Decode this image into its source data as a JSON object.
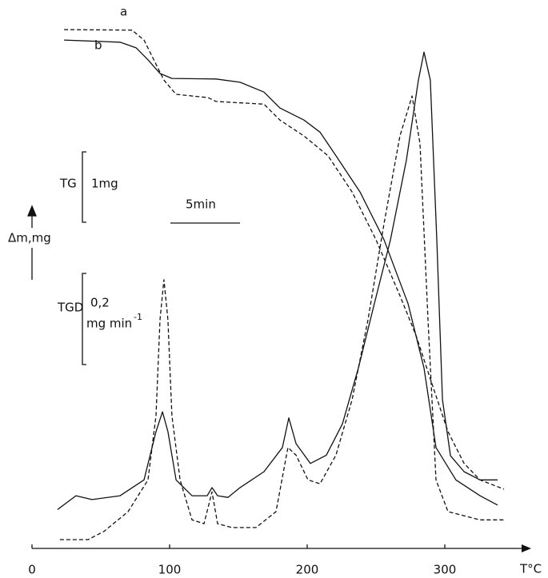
{
  "chart_data": {
    "type": "line",
    "x_label": "T°C",
    "y_label": "Δm,mg",
    "xlim": [
      0,
      360
    ],
    "xticks": [
      0,
      100,
      200,
      300
    ],
    "ylim": [
      0,
      100
    ],
    "annotations": {
      "tg": "TG",
      "tg_scale": "1mg",
      "time_scale": "5min",
      "tgd": "TGD",
      "tgd_scale": "0,2",
      "tgd_unit": "mg min",
      "tgd_exp": "-1"
    },
    "series": [
      {
        "name": "a",
        "color": "#111",
        "line_style": "dashed",
        "x": [
          23.3,
          72.7,
          81.4,
          90.1,
          95.9,
          104.7,
          127.9,
          133.7,
          168.6,
          180.2,
          197.7,
          215.1,
          232.6,
          250,
          267.4,
          279.1,
          290.7,
          302.3,
          314,
          325.6,
          343
        ],
        "values": [
          94.6,
          94.5,
          92.7,
          88.3,
          85.4,
          82.8,
          82.2,
          81.5,
          81.0,
          78.1,
          75.2,
          71.6,
          65.0,
          56.3,
          46.1,
          38.8,
          30.0,
          21.3,
          15.5,
          12.5,
          10.8
        ]
      },
      {
        "name": "b",
        "color": "#111",
        "line_style": "solid",
        "x": [
          23.3,
          64,
          75.6,
          84.3,
          93,
          101.7,
          133.7,
          151.2,
          168.6,
          180.2,
          197.7,
          209.3,
          220.9,
          238.4,
          255.8,
          273.3,
          284.9,
          293.6,
          308.1,
          325.6,
          338.4
        ],
        "values": [
          92.7,
          92.3,
          91.3,
          89.1,
          86.6,
          85.7,
          85.6,
          85.0,
          83.2,
          80.3,
          78.1,
          75.9,
          71.6,
          65.0,
          56.3,
          44.6,
          32.9,
          18.4,
          12.5,
          9.6,
          7.9
        ]
      },
      {
        "color": "#111",
        "line_style": "dashed",
        "x": [
          20.3,
          40.7,
          52.3,
          69.8,
          84.3,
          90.1,
          93,
          95.9,
          98.8,
          101.7,
          107.6,
          116.3,
          125,
          130.8,
          134.9,
          145.3,
          162.8,
          177.3,
          186,
          191.9,
          200.6,
          209.3,
          220.9,
          232.6,
          244.2,
          255.8,
          267.4,
          276.2,
          282,
          287.8,
          293.6,
          302.3,
          325.6,
          343
        ],
        "values": [
          1.6,
          1.6,
          3.1,
          6.7,
          12.5,
          24.2,
          41.7,
          49.0,
          41.7,
          24.2,
          12.5,
          5.2,
          4.5,
          10.3,
          4.5,
          3.8,
          3.8,
          6.7,
          18.4,
          17.0,
          12.5,
          11.8,
          17.0,
          27.1,
          41.7,
          59.2,
          75.2,
          82.5,
          73.8,
          41.7,
          12.5,
          6.7,
          5.2,
          5.2
        ]
      },
      {
        "color": "#111",
        "line_style": "solid",
        "x": [
          18.6,
          32,
          43.6,
          64,
          81.4,
          90.1,
          94.8,
          98.8,
          104.7,
          116.3,
          127.3,
          130.8,
          134.9,
          142.4,
          151.2,
          168.6,
          182,
          186.6,
          191.9,
          202.3,
          213.9,
          225.6,
          237.2,
          248.8,
          260.5,
          272.1,
          280.8,
          284.9,
          289.5,
          294.2,
          298.3,
          304.1,
          314,
          325.6,
          338.4
        ],
        "values": [
          7.1,
          9.6,
          8.9,
          9.6,
          12.5,
          21.3,
          24.9,
          21.3,
          12.5,
          9.6,
          9.6,
          11.1,
          9.6,
          9.3,
          11.1,
          14.0,
          18.4,
          23.8,
          19.1,
          15.5,
          17.0,
          22.7,
          32.9,
          44.6,
          56.3,
          70.8,
          85.4,
          90.5,
          85.4,
          56.3,
          27.1,
          16.9,
          14.0,
          12.5,
          12.5
        ]
      }
    ]
  }
}
